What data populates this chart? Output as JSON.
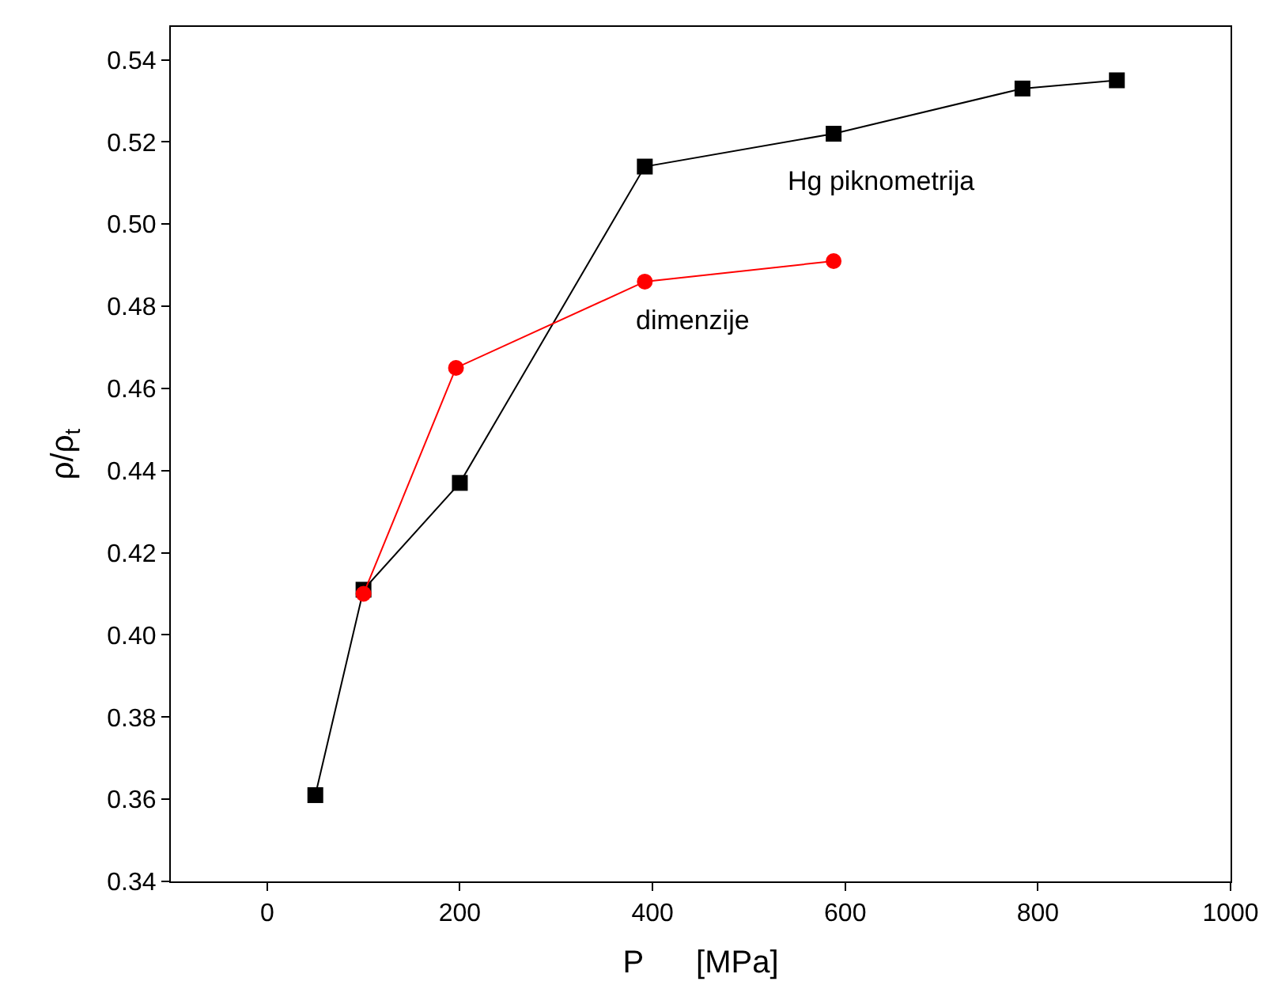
{
  "chart_data": {
    "type": "line",
    "xlabel": "P      [MPa]",
    "ylabel": "ρ/ρ$_{t}$",
    "xlim": [
      -100,
      1000
    ],
    "xticks": [
      0,
      200,
      400,
      600,
      800,
      1000
    ],
    "ylim": [
      0.34,
      0.548
    ],
    "yticks": [
      0.34,
      0.36,
      0.38,
      {
        "value": 0.4,
        "label": "0.40"
      },
      0.42,
      0.44,
      0.46,
      0.48,
      {
        "value": 0.5,
        "label": "0.50"
      },
      0.52,
      0.54
    ],
    "legend": false,
    "line_style": "solid",
    "series": [
      {
        "name": "Hg piknometrija",
        "color": "#000000",
        "marker": "square",
        "x": [
          50,
          100,
          200,
          392,
          588,
          784,
          882
        ],
        "values": [
          0.361,
          0.411,
          0.437,
          0.514,
          0.522,
          0.533,
          0.535
        ]
      },
      {
        "name": "dimenzije",
        "color": "#ff0000",
        "marker": "circle",
        "x": [
          100,
          196,
          392,
          588
        ],
        "values": [
          0.41,
          0.465,
          0.486,
          0.491
        ]
      }
    ]
  }
}
